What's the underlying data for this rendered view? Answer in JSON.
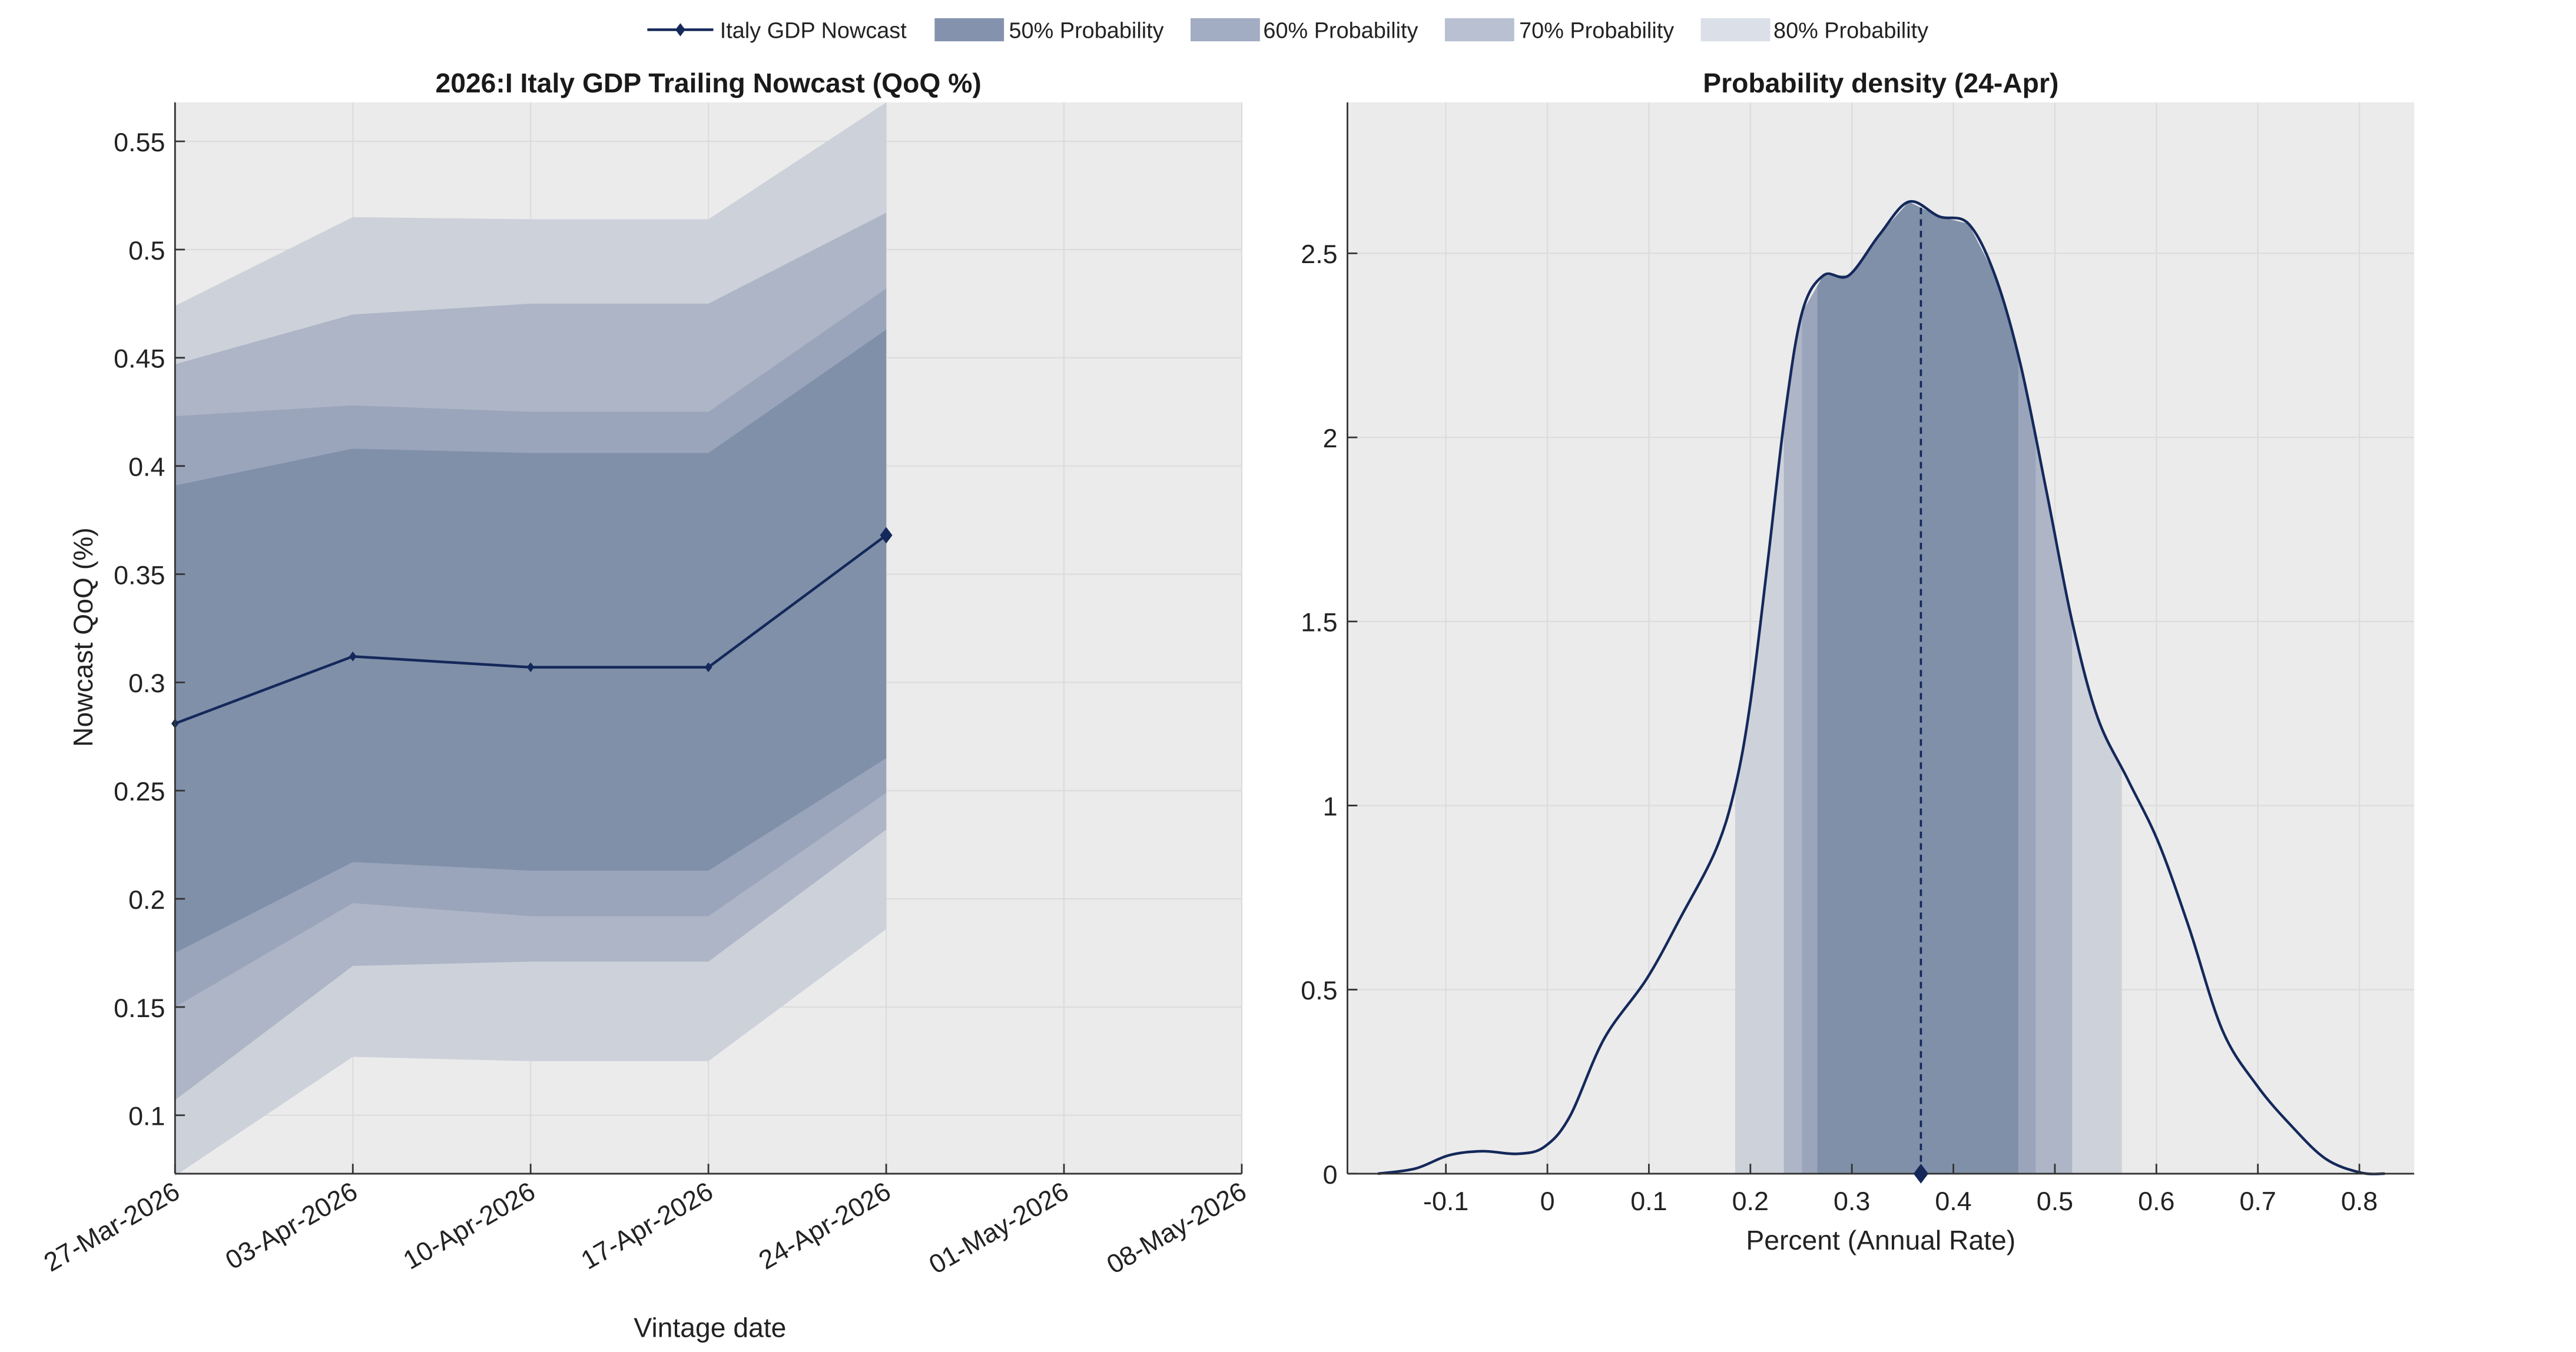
{
  "colors": {
    "background": "#ebebeb",
    "nowcast": "#14285a",
    "band_50": "#8090a9",
    "band_60": "#9aa5bb",
    "band_70": "#adb5c6",
    "band_80": "#cdd1da",
    "legend_50": "#8492ad",
    "legend_60": "#a2acc3",
    "legend_70": "#b8c0d2",
    "legend_80": "#dadfe8",
    "grid": "#dcdcdc"
  },
  "legend": {
    "placement": "top-center",
    "items": [
      {
        "label": "Italy GDP Nowcast",
        "kind": "line"
      },
      {
        "label": "50% Probability",
        "kind": "band_50"
      },
      {
        "label": "60% Probability",
        "kind": "band_60"
      },
      {
        "label": "70% Probability",
        "kind": "band_70"
      },
      {
        "label": "80% Probability",
        "kind": "band_80"
      }
    ]
  },
  "chart_data": [
    {
      "type": "area",
      "title": "2026:I Italy GDP Trailing Nowcast (QoQ %)",
      "xlabel": "Vintage date",
      "ylabel": "Nowcast QoQ (%)",
      "x_ticks": [
        "27-Mar-2026",
        "03-Apr-2026",
        "10-Apr-2026",
        "17-Apr-2026",
        "24-Apr-2026",
        "01-May-2026",
        "08-May-2026"
      ],
      "y_ticks": [
        "0.1",
        "0.15",
        "0.2",
        "0.25",
        "0.3",
        "0.35",
        "0.4",
        "0.45",
        "0.5",
        "0.55"
      ],
      "y_tick_values": [
        0.1,
        0.15,
        0.2,
        0.25,
        0.3,
        0.35,
        0.4,
        0.45,
        0.5,
        0.55
      ],
      "ylim": [
        0.073,
        0.568
      ],
      "grid": true,
      "x": [
        "27-Mar-2026",
        "03-Apr-2026",
        "10-Apr-2026",
        "17-Apr-2026",
        "24-Apr-2026"
      ],
      "nowcast": [
        0.281,
        0.312,
        0.307,
        0.307,
        0.368
      ],
      "bands": {
        "80": {
          "lower": [
            0.072,
            0.127,
            0.125,
            0.125,
            0.186
          ],
          "upper": [
            0.474,
            0.515,
            0.514,
            0.514,
            0.568
          ]
        },
        "70": {
          "lower": [
            0.107,
            0.169,
            0.171,
            0.171,
            0.232
          ],
          "upper": [
            0.447,
            0.47,
            0.475,
            0.475,
            0.517
          ]
        },
        "60": {
          "lower": [
            0.15,
            0.198,
            0.192,
            0.192,
            0.249
          ],
          "upper": [
            0.423,
            0.428,
            0.425,
            0.425,
            0.482
          ]
        },
        "50": {
          "lower": [
            0.175,
            0.217,
            0.213,
            0.213,
            0.265
          ],
          "upper": [
            0.391,
            0.408,
            0.406,
            0.406,
            0.463
          ]
        }
      }
    },
    {
      "type": "area",
      "title": "Probability density (24-Apr)",
      "xlabel": "Percent (Annual Rate)",
      "ylabel": "",
      "x_ticks": [
        "-0.1",
        "0",
        "0.1",
        "0.2",
        "0.3",
        "0.4",
        "0.5",
        "0.6",
        "0.7",
        "0.8"
      ],
      "x_tick_values": [
        -0.1,
        0,
        0.1,
        0.2,
        0.3,
        0.4,
        0.5,
        0.6,
        0.7,
        0.8
      ],
      "y_ticks": [
        "0",
        "0.5",
        "1",
        "1.5",
        "2",
        "2.5"
      ],
      "y_tick_values": [
        0,
        0.5,
        1,
        1.5,
        2,
        2.5
      ],
      "xlim": [
        -0.197,
        0.854
      ],
      "ylim": [
        0,
        2.91
      ],
      "grid": true,
      "median": 0.368,
      "bands": {
        "80": [
          0.185,
          0.566
        ],
        "70": [
          0.233,
          0.517
        ],
        "60": [
          0.251,
          0.481
        ],
        "50": [
          0.266,
          0.464
        ]
      },
      "density": {
        "x": [
          -0.167,
          -0.13,
          -0.097,
          -0.064,
          -0.029,
          -0.003,
          0.022,
          0.056,
          0.098,
          0.132,
          0.166,
          0.185,
          0.2,
          0.217,
          0.234,
          0.251,
          0.272,
          0.297,
          0.327,
          0.356,
          0.386,
          0.415,
          0.441,
          0.466,
          0.492,
          0.517,
          0.542,
          0.572,
          0.602,
          0.632,
          0.665,
          0.699,
          0.733,
          0.767,
          0.801,
          0.825
        ],
        "y": [
          0,
          0.014,
          0.05,
          0.061,
          0.054,
          0.073,
          0.155,
          0.367,
          0.53,
          0.7,
          0.88,
          1.05,
          1.28,
          1.66,
          2.06,
          2.34,
          2.44,
          2.44,
          2.55,
          2.64,
          2.6,
          2.58,
          2.44,
          2.2,
          1.85,
          1.5,
          1.24,
          1.07,
          0.9,
          0.67,
          0.39,
          0.24,
          0.13,
          0.04,
          0.003,
          0
        ]
      }
    }
  ]
}
